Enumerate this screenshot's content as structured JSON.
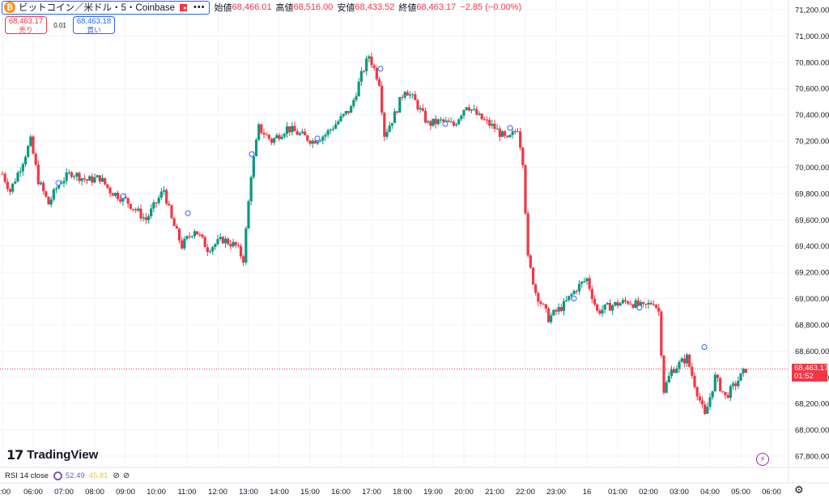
{
  "header": {
    "symbol_title": "ビットコイン／米ドル・5・Coinbase",
    "coin_glyph": "₿",
    "more": "•••",
    "ohlc": [
      {
        "label": "始値",
        "value": "68,466.01"
      },
      {
        "label": "高値",
        "value": "68,516.00"
      },
      {
        "label": "安値",
        "value": "68,433.52"
      },
      {
        "label": "終値",
        "value": "68,463.17"
      }
    ],
    "change": "−2.85 (−0.00%)"
  },
  "trade": {
    "sell_price": "68,463.17",
    "sell_label": "売り",
    "spread": "0.01",
    "buy_price": "68,463.18",
    "buy_label": "買い"
  },
  "logo": {
    "mark": "17",
    "text": "TradingView"
  },
  "indicator": {
    "name": "RSI 14 close",
    "value1": "52.49",
    "value2": "45.81",
    "eye1": "⊘",
    "eye2": "⊘"
  },
  "last_price_tag": {
    "price": "68,463.17",
    "countdown": "01:52"
  },
  "icons": {
    "bolt": "⚡",
    "settings": "⚙"
  },
  "colors": {
    "up": "#089981",
    "down": "#f23645",
    "grid": "#f0f3fa",
    "text": "#131722",
    "accent": "#2962ff"
  },
  "chart_data": {
    "type": "candlestick",
    "title": "",
    "price_unit": "USD",
    "ylim": [
      67800,
      71200
    ],
    "y_ticks": [
      "71,200.00",
      "71,000.00",
      "70,800.00",
      "70,600.00",
      "70,400.00",
      "70,200.00",
      "70,000.00",
      "69,800.00",
      "69,600.00",
      "69,400.00",
      "69,200.00",
      "69,000.00",
      "68,800.00",
      "68,600.00",
      "68,400.00",
      "68,200.00",
      "68,000.00",
      "67,800.00"
    ],
    "x_ticks": [
      ":00",
      "06:00",
      "07:00",
      "08:00",
      "09:00",
      "10:00",
      "11:00",
      "12:00",
      "13:00",
      "14:00",
      "15:00",
      "16:00",
      "17:00",
      "18:00",
      "19:00",
      "20:00",
      "21:00",
      "22:00",
      "23:00",
      "16",
      "01:00",
      "02:00",
      "03:00",
      "04:00",
      "05:00",
      "06:00"
    ],
    "last_price": 68463.17,
    "grid": true,
    "close_path": [
      {
        "t": "05:00",
        "close": 69950
      },
      {
        "t": "05:15",
        "close": 69820
      },
      {
        "t": "05:35",
        "close": 70000
      },
      {
        "t": "05:55",
        "close": 70200
      },
      {
        "t": "06:10",
        "close": 69900
      },
      {
        "t": "06:30",
        "close": 69720
      },
      {
        "t": "06:50",
        "close": 69880
      },
      {
        "t": "07:15",
        "close": 69960
      },
      {
        "t": "07:45",
        "close": 69900
      },
      {
        "t": "08:10",
        "close": 69920
      },
      {
        "t": "08:30",
        "close": 69820
      },
      {
        "t": "09:00",
        "close": 69750
      },
      {
        "t": "09:40",
        "close": 69600
      },
      {
        "t": "10:15",
        "close": 69830
      },
      {
        "t": "10:30",
        "close": 69600
      },
      {
        "t": "10:50",
        "close": 69400
      },
      {
        "t": "11:15",
        "close": 69530
      },
      {
        "t": "11:40",
        "close": 69380
      },
      {
        "t": "12:10",
        "close": 69450
      },
      {
        "t": "12:35",
        "close": 69400
      },
      {
        "t": "12:50",
        "close": 69300
      },
      {
        "t": "13:05",
        "close": 69950
      },
      {
        "t": "13:20",
        "close": 70300
      },
      {
        "t": "13:45",
        "close": 70200
      },
      {
        "t": "14:15",
        "close": 70300
      },
      {
        "t": "14:40",
        "close": 70250
      },
      {
        "t": "15:05",
        "close": 70200
      },
      {
        "t": "15:30",
        "close": 70250
      },
      {
        "t": "15:55",
        "close": 70350
      },
      {
        "t": "16:20",
        "close": 70450
      },
      {
        "t": "16:40",
        "close": 70700
      },
      {
        "t": "16:55",
        "close": 70850
      },
      {
        "t": "17:15",
        "close": 70650
      },
      {
        "t": "17:25",
        "close": 70250
      },
      {
        "t": "17:45",
        "close": 70400
      },
      {
        "t": "18:05",
        "close": 70600
      },
      {
        "t": "18:25",
        "close": 70500
      },
      {
        "t": "18:50",
        "close": 70330
      },
      {
        "t": "19:15",
        "close": 70350
      },
      {
        "t": "19:40",
        "close": 70320
      },
      {
        "t": "20:05",
        "close": 70480
      },
      {
        "t": "20:30",
        "close": 70380
      },
      {
        "t": "21:00",
        "close": 70300
      },
      {
        "t": "21:25",
        "close": 70200
      },
      {
        "t": "21:45",
        "close": 70300
      },
      {
        "t": "21:55",
        "close": 70050
      },
      {
        "t": "22:05",
        "close": 69300
      },
      {
        "t": "22:20",
        "close": 69050
      },
      {
        "t": "22:45",
        "close": 68850
      },
      {
        "t": "23:15",
        "close": 68950
      },
      {
        "t": "23:40",
        "close": 69080
      },
      {
        "t": "00:00",
        "close": 69150
      },
      {
        "t": "00:20",
        "close": 68900
      },
      {
        "t": "00:50",
        "close": 68950
      },
      {
        "t": "01:20",
        "close": 68980
      },
      {
        "t": "01:50",
        "close": 68930
      },
      {
        "t": "02:10",
        "close": 68980
      },
      {
        "t": "02:20",
        "close": 68900
      },
      {
        "t": "02:30",
        "close": 68300
      },
      {
        "t": "02:45",
        "close": 68450
      },
      {
        "t": "03:15",
        "close": 68550
      },
      {
        "t": "03:30",
        "close": 68350
      },
      {
        "t": "03:50",
        "close": 68100
      },
      {
        "t": "04:10",
        "close": 68400
      },
      {
        "t": "04:30",
        "close": 68250
      },
      {
        "t": "04:50",
        "close": 68350
      },
      {
        "t": "05:10",
        "close": 68463.17
      }
    ]
  }
}
